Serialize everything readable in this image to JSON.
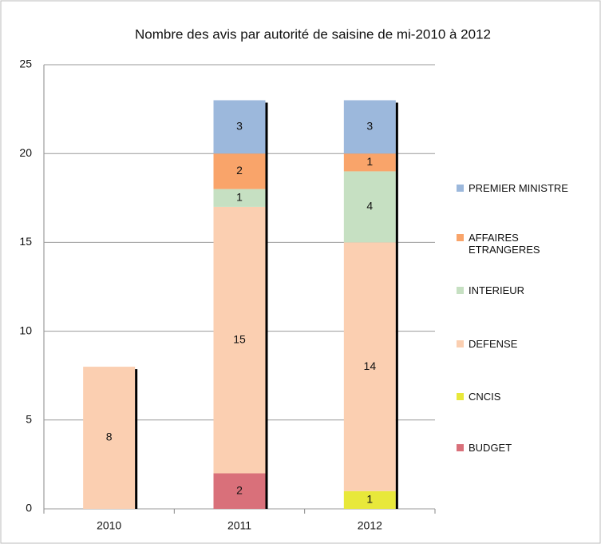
{
  "chart_data": {
    "type": "stacked_bar",
    "title": "Nombre des avis par autorité de saisine de mi-2010 à 2012",
    "categories": [
      "2010",
      "2011",
      "2012"
    ],
    "series": [
      {
        "name": "BUDGET",
        "color": "#d9707a",
        "values": [
          null,
          2,
          null
        ]
      },
      {
        "name": "CNCIS",
        "color": "#e8e83a",
        "values": [
          null,
          null,
          1
        ]
      },
      {
        "name": "DEFENSE",
        "color": "#fbcfb1",
        "values": [
          8,
          15,
          14
        ]
      },
      {
        "name": "INTERIEUR",
        "color": "#c6e0c2",
        "values": [
          null,
          1,
          4
        ]
      },
      {
        "name": "AFFAIRES ETRANGERES",
        "color": "#f9a46a",
        "values": [
          null,
          2,
          1
        ]
      },
      {
        "name": "PREMIER MINISTRE",
        "color": "#9cb8dc",
        "values": [
          null,
          3,
          3
        ]
      }
    ],
    "ylim": [
      0,
      25
    ],
    "yticks": [
      0,
      5,
      10,
      15,
      20,
      25
    ],
    "grid": true,
    "legend": "right"
  }
}
